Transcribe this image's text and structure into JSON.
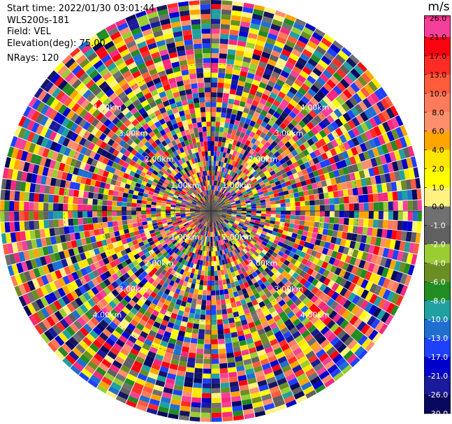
{
  "info": {
    "start_time": "Start time: 2022/01/30 03:01:44",
    "station": "WLS200s-181",
    "field": "Field: VEL",
    "elevation": "Elevation(deg): 75.00",
    "nrays": "NRays: 120"
  },
  "chart_data": {
    "type": "heatmap",
    "projection": "polar-ppi",
    "field": "VEL",
    "n_rays": 120,
    "range_unit": "km",
    "range_rings_km": [
      1.0,
      2.0,
      3.0,
      4.0
    ],
    "ring_labels": [
      "1.00km",
      "2.00km",
      "3.00km",
      "4.00km"
    ],
    "colorbar": {
      "unit": "m/s",
      "vmin": -30.0,
      "vmax": 30.0,
      "levels": [
        26.0,
        21.0,
        17.0,
        13.0,
        10.0,
        8.0,
        6.0,
        4.0,
        2.0,
        1.0,
        0.0,
        -1.0,
        -2.0,
        -4.0,
        -6.0,
        -8.0,
        -10.0,
        -13.0,
        -17.0,
        -21.0,
        -26.0,
        -30.0
      ],
      "tick_labels": [
        "26.0",
        "21.0",
        "17.0",
        "13.0",
        "10.0",
        "8.0",
        "6.0",
        "4.0",
        "2.0",
        "1.0",
        "0.0",
        "-1.0",
        "-2.0",
        "-4.0",
        "-6.0",
        "-8.0",
        "-10.0",
        "-13.0",
        "-17.0",
        "-21.0",
        "-26.0",
        "-30.0"
      ],
      "colors": [
        "#f7297f",
        "#f5409a",
        "#ff0011",
        "#ff2c25",
        "#ff5c3c",
        "#ff7b5c",
        "#ff8f6c",
        "#ffa500",
        "#ffe600",
        "#ffff00",
        "#fff280",
        "#707070",
        "#606060",
        "#9acd32",
        "#6b8e23",
        "#228b22",
        "#20a0a0",
        "#1e6fd0",
        "#1e40ff",
        "#0000cd",
        "#1a1a9a",
        "#08085e",
        "#161660"
      ]
    }
  }
}
